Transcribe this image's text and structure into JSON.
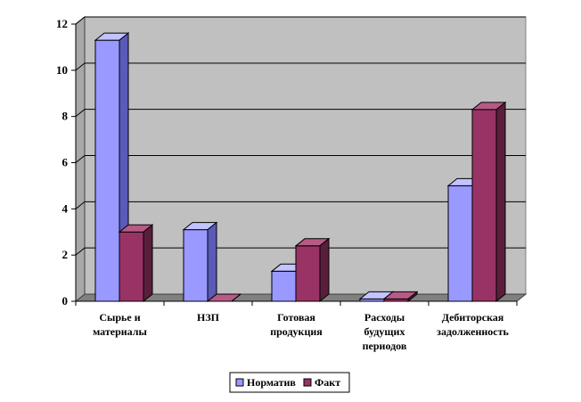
{
  "chart_data": {
    "type": "bar",
    "categories": [
      [
        "Сырье и",
        "материалы"
      ],
      [
        "НЗП"
      ],
      [
        "Готовая",
        "продукция"
      ],
      [
        "Расходы",
        "будущих",
        "периодов"
      ],
      [
        "Дебиторская",
        "задолженность"
      ]
    ],
    "series": [
      {
        "name": "Норматив",
        "values": [
          11.3,
          3.1,
          1.3,
          0.1,
          5.0
        ],
        "color": "#9999ff",
        "side": "#5a5ab8",
        "top": "#c3c3ff"
      },
      {
        "name": "Факт",
        "values": [
          3.0,
          0.0,
          2.4,
          0.1,
          8.3
        ],
        "color": "#993366",
        "side": "#5a1e3c",
        "top": "#b85a86"
      }
    ],
    "ylim": [
      0,
      12
    ],
    "yticks": [
      0,
      2,
      4,
      6,
      8,
      10,
      12
    ],
    "grid": true,
    "legend": "bottom",
    "wall_color": "#c0c0c0"
  }
}
